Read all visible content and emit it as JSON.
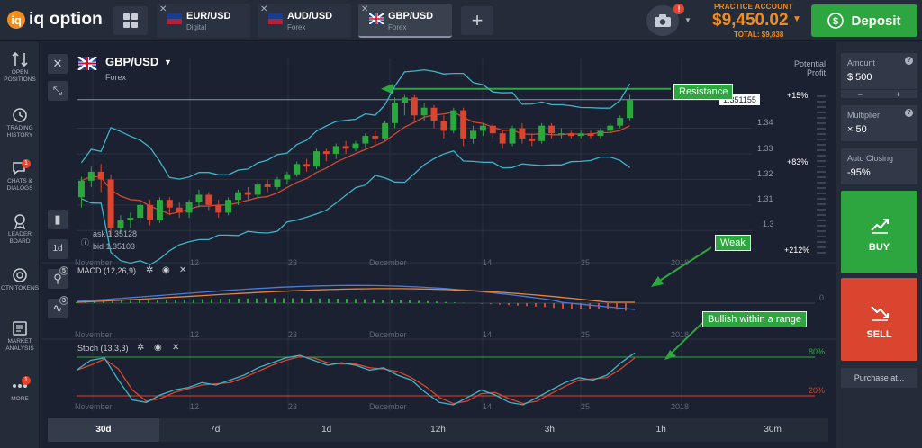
{
  "app": {
    "logo_mark": "iq",
    "logo_text": "iq option"
  },
  "tabs": [
    {
      "name": "EUR/USD",
      "sub": "Digital",
      "active": false
    },
    {
      "name": "AUD/USD",
      "sub": "Forex",
      "active": false
    },
    {
      "name": "GBP/USD",
      "sub": "Forex",
      "active": true
    }
  ],
  "header": {
    "account_label": "PRACTICE ACCOUNT",
    "balance": "$9,450.02",
    "total": "TOTAL: $9,838",
    "camera_badge": "!",
    "deposit_label": "Deposit"
  },
  "sidebar": {
    "items": [
      {
        "label": "OPEN POSITIONS",
        "icon": "positions-icon",
        "badge": ""
      },
      {
        "label": "TRADING HISTORY",
        "icon": "history-icon",
        "badge": ""
      },
      {
        "label": "CHATS & DIALOGS",
        "icon": "chat-icon",
        "badge": "1"
      },
      {
        "label": "LEADER BOARD",
        "icon": "trophy-icon",
        "badge": ""
      },
      {
        "label": "OTN TOKENS",
        "icon": "token-icon",
        "badge": ""
      },
      {
        "label": "MARKET ANALYSIS",
        "icon": "analysis-icon",
        "badge": ""
      },
      {
        "label": "MORE",
        "icon": "more-icon",
        "badge": "1"
      }
    ]
  },
  "asset": {
    "name": "GBP/USD",
    "type": "Forex",
    "ask": "ask 1.35128",
    "bid": "bid 1.35103"
  },
  "chart_tools": {
    "period": "1d",
    "badge_a": "5",
    "badge_b": "3"
  },
  "potential_profit": {
    "label": "Potential Profit",
    "top": "+15%",
    "mid": "+83%",
    "bottom": "+212%"
  },
  "price_axis": {
    "current": "1.351155",
    "ticks": [
      "1.34",
      "1.33",
      "1.32",
      "1.31",
      "1.3"
    ]
  },
  "indicators": {
    "macd_label": "MACD (12,26,9)",
    "macd_zero": "0",
    "stoch_label": "Stoch (13,3,3)",
    "stoch_high": "80%",
    "stoch_low": "20%"
  },
  "time_labels": [
    "November",
    "12",
    "23",
    "December",
    "14",
    "25",
    "2018"
  ],
  "annotations": {
    "resistance": "Resistance",
    "weak": "Weak",
    "bullish": "Bullish within a range"
  },
  "right_panel": {
    "amount_label": "Amount",
    "amount_value": "$ 500",
    "multiplier_label": "Multiplier",
    "multiplier_value": "× 50",
    "auto_closing_label": "Auto Closing",
    "auto_closing_value": "-95%",
    "buy_label": "BUY",
    "sell_label": "SELL",
    "purchase_label": "Purchase at..."
  },
  "timeframes": [
    "30d",
    "7d",
    "1d",
    "12h",
    "3h",
    "1h",
    "30m"
  ],
  "active_timeframe": "30d",
  "colors": {
    "accent": "#f28c1e",
    "buy": "#2ea63f",
    "sell": "#d9452f",
    "up": "#2ea63f",
    "down": "#d9452f"
  },
  "chart_data": {
    "type": "candlestick",
    "instrument": "GBP/USD",
    "current_price": 1.351155,
    "ylim": [
      1.298,
      1.356
    ],
    "y_ticks": [
      1.34,
      1.33,
      1.32,
      1.31,
      1.3
    ],
    "candles": [
      [
        1.313,
        1.3195,
        1.309,
        1.321
      ],
      [
        1.3195,
        1.323,
        1.317,
        1.325
      ],
      [
        1.323,
        1.32,
        1.315,
        1.326
      ],
      [
        1.32,
        1.301,
        1.298,
        1.322
      ],
      [
        1.301,
        1.304,
        1.299,
        1.306
      ],
      [
        1.304,
        1.305,
        1.301,
        1.307
      ],
      [
        1.305,
        1.31,
        1.303,
        1.311
      ],
      [
        1.31,
        1.304,
        1.302,
        1.312
      ],
      [
        1.304,
        1.312,
        1.303,
        1.313
      ],
      [
        1.312,
        1.309,
        1.306,
        1.313
      ],
      [
        1.309,
        1.307,
        1.305,
        1.311
      ],
      [
        1.307,
        1.311,
        1.305,
        1.312
      ],
      [
        1.311,
        1.314,
        1.309,
        1.316
      ],
      [
        1.314,
        1.31,
        1.308,
        1.315
      ],
      [
        1.31,
        1.307,
        1.305,
        1.312
      ],
      [
        1.307,
        1.312,
        1.306,
        1.313
      ],
      [
        1.312,
        1.315,
        1.31,
        1.316
      ],
      [
        1.315,
        1.314,
        1.312,
        1.317
      ],
      [
        1.314,
        1.318,
        1.313,
        1.319
      ],
      [
        1.318,
        1.317,
        1.315,
        1.32
      ],
      [
        1.317,
        1.32,
        1.316,
        1.321
      ],
      [
        1.32,
        1.322,
        1.318,
        1.323
      ],
      [
        1.322,
        1.326,
        1.321,
        1.327
      ],
      [
        1.326,
        1.325,
        1.323,
        1.328
      ],
      [
        1.325,
        1.331,
        1.324,
        1.332
      ],
      [
        1.331,
        1.33,
        1.327,
        1.332
      ],
      [
        1.33,
        1.333,
        1.328,
        1.334
      ],
      [
        1.333,
        1.332,
        1.33,
        1.335
      ],
      [
        1.332,
        1.334,
        1.331,
        1.335
      ],
      [
        1.334,
        1.337,
        1.332,
        1.338
      ],
      [
        1.337,
        1.336,
        1.334,
        1.339
      ],
      [
        1.336,
        1.342,
        1.335,
        1.343
      ],
      [
        1.342,
        1.35,
        1.34,
        1.352
      ],
      [
        1.35,
        1.352,
        1.345,
        1.353
      ],
      [
        1.352,
        1.345,
        1.343,
        1.353
      ],
      [
        1.345,
        1.348,
        1.343,
        1.35
      ],
      [
        1.348,
        1.343,
        1.34,
        1.349
      ],
      [
        1.343,
        1.339,
        1.336,
        1.345
      ],
      [
        1.339,
        1.347,
        1.338,
        1.348
      ],
      [
        1.347,
        1.336,
        1.333,
        1.348
      ],
      [
        1.336,
        1.339,
        1.334,
        1.341
      ],
      [
        1.339,
        1.341,
        1.337,
        1.342
      ],
      [
        1.341,
        1.338,
        1.336,
        1.342
      ],
      [
        1.338,
        1.334,
        1.332,
        1.339
      ],
      [
        1.334,
        1.34,
        1.333,
        1.341
      ],
      [
        1.34,
        1.336,
        1.334,
        1.342
      ],
      [
        1.336,
        1.335,
        1.333,
        1.338
      ],
      [
        1.335,
        1.341,
        1.334,
        1.342
      ],
      [
        1.341,
        1.338,
        1.336,
        1.342
      ],
      [
        1.338,
        1.338,
        1.336,
        1.34
      ],
      [
        1.338,
        1.337,
        1.336,
        1.339
      ],
      [
        1.337,
        1.338,
        1.336,
        1.339
      ],
      [
        1.338,
        1.337,
        1.336,
        1.339
      ],
      [
        1.337,
        1.339,
        1.336,
        1.34
      ],
      [
        1.339,
        1.341,
        1.338,
        1.342
      ],
      [
        1.341,
        1.344,
        1.34,
        1.345
      ],
      [
        1.344,
        1.351,
        1.343,
        1.353
      ]
    ],
    "annotations": [
      "Resistance",
      "Weak",
      "Bullish within a range"
    ]
  }
}
